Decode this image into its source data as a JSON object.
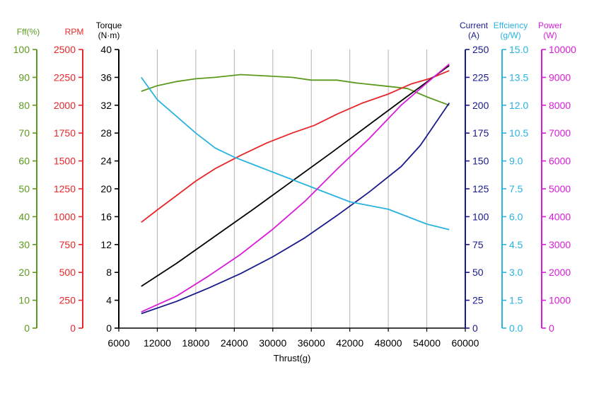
{
  "chart_data": {
    "type": "line",
    "xlabel": "Thrust(g)",
    "xlim": [
      6000,
      60000
    ],
    "xticks": [
      6000,
      12000,
      18000,
      24000,
      30000,
      36000,
      42000,
      48000,
      54000,
      60000
    ],
    "axes": [
      {
        "id": "eff_pct",
        "title": "Fff(%)",
        "color": "#5b9a1e",
        "side": "left",
        "min": 0,
        "max": 100,
        "ticks": [
          0,
          10,
          20,
          30,
          40,
          50,
          60,
          70,
          80,
          90,
          100
        ],
        "decimals": 0
      },
      {
        "id": "rpm",
        "title": "RPM",
        "color": "#e8262a",
        "side": "left",
        "min": 0,
        "max": 2500,
        "ticks": [
          0,
          250,
          500,
          750,
          1000,
          1250,
          1500,
          1750,
          2000,
          2250,
          2500
        ],
        "decimals": 0
      },
      {
        "id": "torque",
        "title_lines": [
          "Torque",
          "(N·m)"
        ],
        "color": "#000000",
        "side": "left",
        "min": 0,
        "max": 40,
        "ticks": [
          0,
          4,
          8,
          12,
          16,
          20,
          24,
          28,
          32,
          36,
          40
        ],
        "decimals": 0
      },
      {
        "id": "current",
        "title_lines": [
          "Current",
          "(A)"
        ],
        "color": "#1a1a8c",
        "side": "right",
        "min": 0,
        "max": 250,
        "ticks": [
          0,
          25,
          50,
          75,
          100,
          125,
          150,
          175,
          200,
          225,
          250
        ],
        "decimals": 0
      },
      {
        "id": "efficiency",
        "title_lines": [
          "Effciency",
          "(g/W)"
        ],
        "color": "#29b3e0",
        "side": "right",
        "min": 0,
        "max": 15,
        "ticks": [
          0,
          1.5,
          3,
          4.5,
          6,
          7.5,
          9,
          10.5,
          12,
          13.5,
          15
        ],
        "decimals": 1
      },
      {
        "id": "power",
        "title_lines": [
          "Power",
          "(W)"
        ],
        "color": "#d91cd9",
        "side": "right",
        "min": 0,
        "max": 10000,
        "ticks": [
          0,
          1000,
          2000,
          3000,
          4000,
          5000,
          6000,
          7000,
          8000,
          9000,
          10000
        ],
        "decimals": 0
      }
    ],
    "series": [
      {
        "axis": "eff_pct",
        "color": "#5b9a1e",
        "x": [
          9500,
          12000,
          15000,
          18000,
          21000,
          25000,
          29000,
          33000,
          36000,
          40000,
          43000,
          47000,
          51000,
          54000,
          57500
        ],
        "y": [
          85,
          87,
          88.5,
          89.5,
          90,
          91,
          90.5,
          90,
          89,
          89,
          88,
          87,
          86,
          83,
          80
        ]
      },
      {
        "axis": "rpm",
        "color": "#e8262a",
        "x": [
          9500,
          12000,
          15000,
          18000,
          21000,
          25000,
          29000,
          33000,
          36500,
          40000,
          44000,
          48000,
          51500,
          54500,
          57500
        ],
        "y": [
          950,
          1060,
          1190,
          1320,
          1430,
          1550,
          1660,
          1750,
          1820,
          1920,
          2020,
          2100,
          2190,
          2240,
          2310
        ]
      },
      {
        "axis": "torque",
        "color": "#000000",
        "x": [
          9500,
          15000,
          21000,
          27000,
          33000,
          39000,
          45000,
          51000,
          57500
        ],
        "y": [
          6,
          9.3,
          13.2,
          17.1,
          21.1,
          25.1,
          29.2,
          33.3,
          37.7
        ]
      },
      {
        "axis": "current",
        "color": "#1a1a8c",
        "x": [
          9500,
          15000,
          20000,
          25000,
          30000,
          35000,
          40000,
          45000,
          50000,
          53000,
          57500
        ],
        "y": [
          13,
          24,
          36,
          49,
          64,
          81,
          101,
          122,
          145,
          164,
          202
        ]
      },
      {
        "axis": "efficiency",
        "color": "#29b3e0",
        "x": [
          9500,
          12000,
          15000,
          18000,
          21000,
          24000,
          27000,
          30000,
          33000,
          36000,
          39000,
          42000,
          45000,
          48000,
          51000,
          54000,
          57500
        ],
        "y": [
          13.5,
          12.3,
          11.4,
          10.5,
          9.7,
          9.2,
          8.8,
          8.4,
          8.0,
          7.6,
          7.2,
          6.8,
          6.6,
          6.4,
          6.0,
          5.6,
          5.3
        ]
      },
      {
        "axis": "power",
        "color": "#d91cd9",
        "x": [
          9500,
          15000,
          20000,
          25000,
          30000,
          35000,
          40000,
          45000,
          50000,
          54000,
          57500
        ],
        "y": [
          580,
          1150,
          1870,
          2650,
          3550,
          4550,
          5700,
          6800,
          8000,
          8800,
          9480
        ]
      }
    ],
    "grid": "vertical"
  }
}
